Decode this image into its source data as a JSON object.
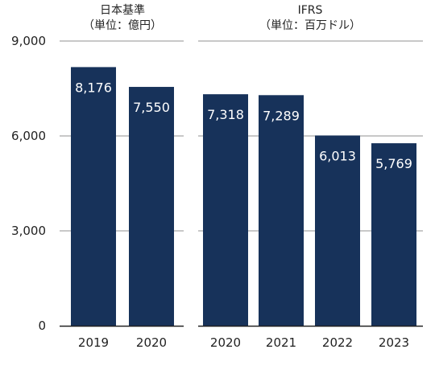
{
  "chart_data": [
    {
      "type": "bar",
      "title": "日本基準",
      "subtitle": "（単位：億円）",
      "categories": [
        "2019",
        "2020"
      ],
      "values": [
        8176,
        7550
      ],
      "value_labels": [
        "8,176",
        "7,550"
      ],
      "yticks": [
        "0",
        "3,000",
        "6,000",
        "9,000"
      ],
      "ylim": [
        0,
        9000
      ],
      "grid": true,
      "bar_color": "#17325a"
    },
    {
      "type": "bar",
      "title": "IFRS",
      "subtitle": "（単位：百万ドル）",
      "categories": [
        "2020",
        "2021",
        "2022",
        "2023"
      ],
      "values": [
        7318,
        7289,
        6013,
        5769
      ],
      "value_labels": [
        "7,318",
        "7,289",
        "6,013",
        "5,769"
      ],
      "ylim": [
        0,
        9000
      ],
      "grid": true,
      "bar_color": "#17325a"
    }
  ]
}
